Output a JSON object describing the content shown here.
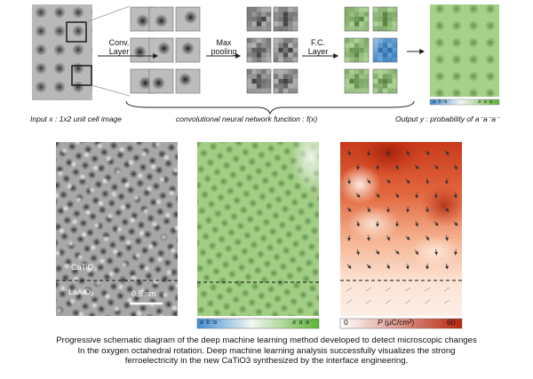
{
  "pipeline": {
    "stages": [
      "Conv.\nLayer",
      "Max\npooling",
      "F.C.\nLayer"
    ],
    "input_label": "Input x : 1x2 unit cell image",
    "function_label": "convolutional neural network function : f(x)",
    "output_label": "Output y : probability of a⁻a⁻a⁻",
    "top_colorbar": {
      "left": "a⁻b⁺a⁻",
      "right": "a⁻a⁻a⁻"
    }
  },
  "panels": {
    "haadf": {
      "upper_layer": "CaTiO₃",
      "lower_layer": "LaAlO₃",
      "scale_bar": "0.5 nm"
    },
    "probability_colorbar": {
      "left": "a⁻b⁺a⁻",
      "right": "a⁻a⁻a⁻"
    },
    "polarization_colorbar": {
      "min": "0",
      "quantity": "P",
      "unit": "(μC/cm²)",
      "max": "60"
    }
  },
  "colors": {
    "gray_background": "#b6b6b6",
    "green_probability": "#9fd07e",
    "blue_probability": "#6fa8d8",
    "polarization_high": "#c8391a",
    "polarization_low": "#fbe3d4"
  },
  "caption": [
    "Progressive schematic diagram of the deep machine learning method developed to detect microscopic changes",
    "In the oxygen octahedral rotation. Deep machine learning analysis successfully visualizes the strong",
    "ferroelectricity in the new CaTiO3 synthesized by the interface engineering."
  ]
}
